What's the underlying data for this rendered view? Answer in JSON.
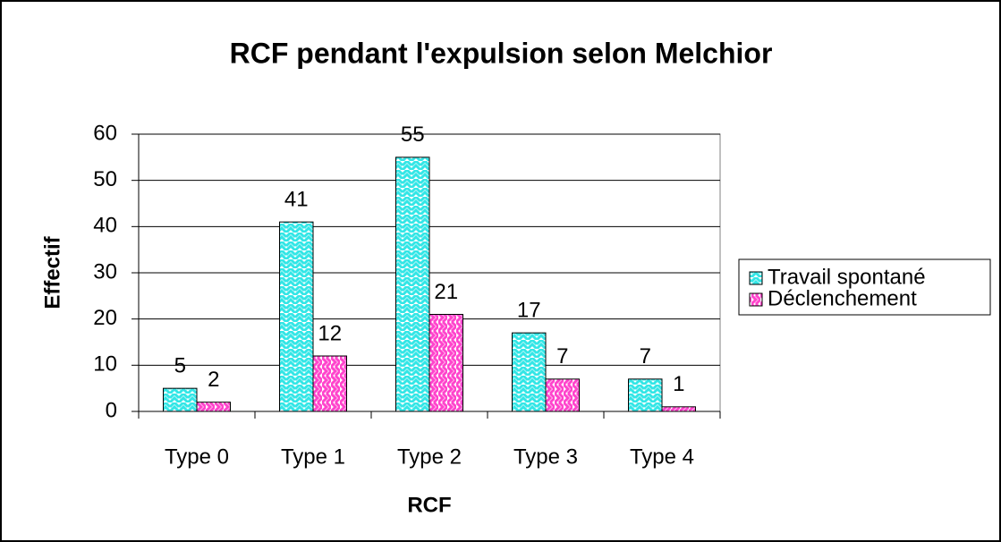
{
  "chart_data": {
    "type": "bar",
    "title": "RCF pendant l'expulsion selon Melchior",
    "x_label": "RCF",
    "y_label": "Effectif",
    "categories": [
      "Type 0",
      "Type 1",
      "Type 2",
      "Type 3",
      "Type 4"
    ],
    "series": [
      {
        "name": "Travail spontané",
        "color": "#33e6e6",
        "values": [
          5,
          41,
          55,
          17,
          7
        ]
      },
      {
        "name": "Déclenchement",
        "color": "#ff44cc",
        "values": [
          2,
          12,
          21,
          7,
          1
        ]
      }
    ],
    "ylim": [
      0,
      60
    ],
    "yticks": [
      0,
      10,
      20,
      30,
      40,
      50,
      60
    ],
    "grid": true,
    "legend": "right"
  }
}
